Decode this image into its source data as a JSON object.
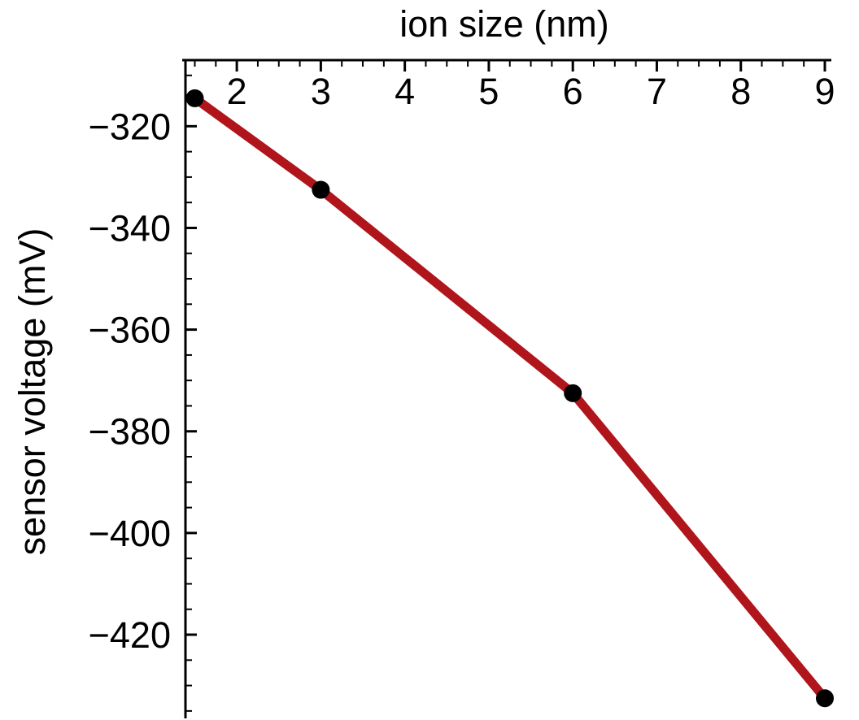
{
  "chart_data": {
    "type": "line",
    "xlabel": "ion size (nm)",
    "ylabel": "sensor voltage (mV)",
    "x_axis_position": "top",
    "xlim": [
      1.35,
      9.0
    ],
    "ylim": [
      -435.5,
      -307.0
    ],
    "xticks": [
      2,
      3,
      4,
      5,
      6,
      7,
      8,
      9
    ],
    "xtick_labels": [
      "2",
      "3",
      "4",
      "5",
      "6",
      "7",
      "8",
      "9"
    ],
    "yticks": [
      -320,
      -340,
      -360,
      -380,
      -400,
      -420
    ],
    "ytick_labels": [
      "−320",
      "−340",
      "−360",
      "−380",
      "−400",
      "−420"
    ],
    "grid": false,
    "series": [
      {
        "color": "#b0151c",
        "marker_color": "#000000",
        "x": [
          1.5,
          3.0,
          6.0,
          9.0
        ],
        "y": [
          -314.5,
          -332.5,
          -372.5,
          -432.5
        ]
      }
    ]
  }
}
